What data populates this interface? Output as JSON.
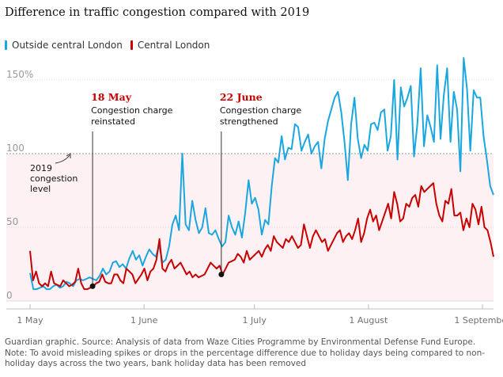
{
  "title": "Difference in traffic congestion compared with 2019",
  "legend": [
    {
      "label": "Outside central London",
      "color": "#1aa7e0"
    },
    {
      "label": "Central London",
      "color": "#c70000"
    }
  ],
  "footer": {
    "source": "Guardian graphic. Source: Analysis of data from Waze Cities Programme by Environmental Defense Fund Europe.",
    "note": "Note: To avoid misleading spikes or drops in the percentage difference due to holiday days being compared to non-holiday days across the two years, bank holiday data has been removed"
  },
  "chart_data": {
    "type": "line",
    "title": "Difference in traffic congestion compared with 2019",
    "xlabel": "",
    "ylabel": "",
    "x_range_days": [
      0,
      126
    ],
    "ylim": [
      0,
      170
    ],
    "y_ticks": [
      "0",
      "50",
      "100",
      "150%"
    ],
    "y_tick_values": [
      0,
      50,
      100,
      150
    ],
    "x_ticks": [
      {
        "label": "1 May",
        "day": 0
      },
      {
        "label": "1 June",
        "day": 31
      },
      {
        "label": "1 July",
        "day": 61
      },
      {
        "label": "1 August",
        "day": 92
      },
      {
        "label": "1 September",
        "day": 123
      }
    ],
    "reference_line": {
      "value": 100,
      "label": [
        "2019",
        "congestion",
        "level"
      ]
    },
    "annotations": [
      {
        "date": "18 May",
        "text": [
          "Congestion charge",
          "reinstated"
        ],
        "day": 17,
        "series": "Central London"
      },
      {
        "date": "22 June",
        "text": [
          "Congestion charge",
          "strengthened"
        ],
        "day": 52,
        "series": "Central London"
      }
    ],
    "series": [
      {
        "name": "Outside central London",
        "color": "#1aa7e0",
        "values": [
          19,
          8,
          8,
          9,
          10,
          8,
          8,
          10,
          11,
          9,
          10,
          13,
          12,
          10,
          14,
          15,
          14,
          15,
          16,
          15,
          14,
          17,
          22,
          18,
          20,
          26,
          27,
          23,
          25,
          22,
          29,
          34,
          28,
          31,
          24,
          30,
          35,
          32,
          30,
          38,
          26,
          28,
          37,
          52,
          58,
          48,
          100,
          52,
          48,
          68,
          55,
          46,
          50,
          63,
          46,
          45,
          48,
          42,
          37,
          40,
          58,
          50,
          45,
          54,
          43,
          60,
          82,
          66,
          70,
          62,
          45,
          55,
          52,
          78,
          97,
          94,
          112,
          96,
          104,
          103,
          120,
          118,
          102,
          108,
          113,
          100,
          105,
          108,
          90,
          110,
          122,
          130,
          138,
          142,
          128,
          108,
          82,
          120,
          138,
          110,
          97,
          106,
          102,
          120,
          121,
          116,
          128,
          130,
          102,
          112,
          150,
          96,
          145,
          132,
          138,
          146,
          98,
          120,
          158,
          105,
          126,
          118,
          108,
          160,
          110,
          140,
          158,
          108,
          142,
          130,
          88,
          165,
          144,
          102,
          143,
          138,
          138,
          112,
          96,
          78,
          72
        ],
        "note": "daily values, 1 May to 5 September (approximate readings)"
      },
      {
        "name": "Central London",
        "color": "#c70000",
        "values": [
          34,
          14,
          20,
          12,
          10,
          12,
          10,
          20,
          12,
          11,
          10,
          14,
          12,
          10,
          11,
          13,
          22,
          12,
          8,
          8,
          9,
          10,
          12,
          13,
          18,
          13,
          12,
          12,
          18,
          18,
          14,
          12,
          22,
          20,
          18,
          12,
          15,
          18,
          22,
          14,
          20,
          22,
          28,
          42,
          22,
          20,
          25,
          28,
          22,
          24,
          26,
          22,
          18,
          20,
          16,
          18,
          16,
          17,
          18,
          22,
          26,
          24,
          22,
          24,
          18,
          22,
          26,
          27,
          28,
          32,
          30,
          26,
          34,
          28,
          30,
          32,
          34,
          30,
          35,
          38,
          34,
          44,
          40,
          38,
          36,
          42,
          40,
          44,
          40,
          36,
          38,
          52,
          44,
          36,
          44,
          48,
          44,
          40,
          42,
          34,
          38,
          42,
          46,
          48,
          40,
          44,
          46,
          42,
          48,
          56,
          40,
          46,
          56,
          62,
          54,
          58,
          48,
          54,
          60,
          66,
          56,
          74,
          66,
          54,
          56,
          66,
          64,
          70,
          72,
          64,
          78,
          74,
          76,
          78,
          80,
          66,
          58,
          54,
          68,
          66,
          76,
          58,
          58,
          60,
          48,
          56,
          50,
          66,
          62,
          52,
          64,
          50,
          48,
          40,
          30
        ],
        "note": "daily values, 1 May to 5 September (approximate readings)"
      }
    ]
  }
}
